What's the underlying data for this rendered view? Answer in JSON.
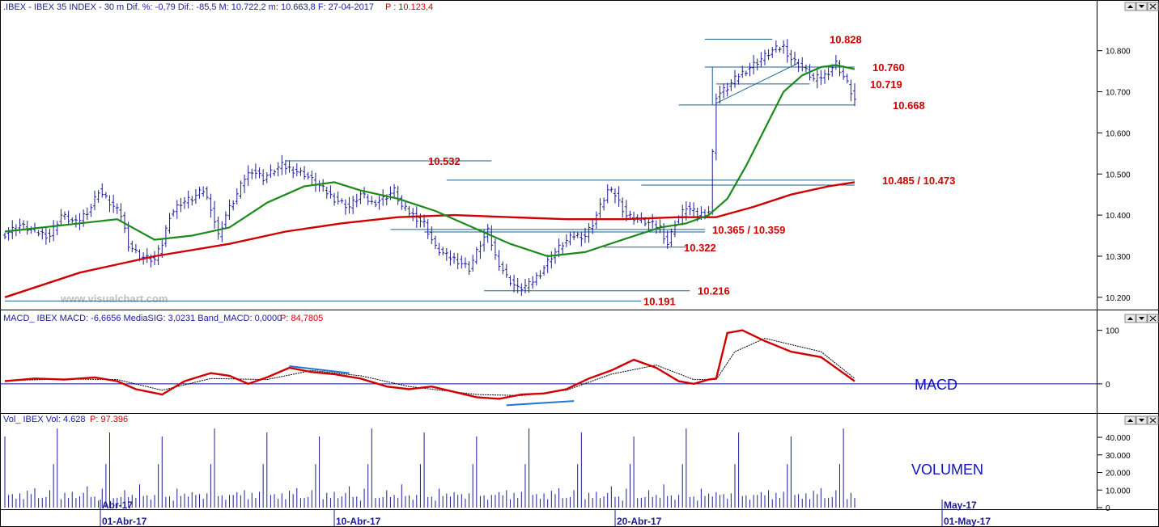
{
  "header": {
    "price_title": ".IBEX - IBEX 35 INDEX - 30 m Dif. %: -0,79 Dif.: -85,5 M: 10.722,2 m: 10.663,8 F: 27-04-2017",
    "price_p": "P : 10.123,4",
    "macd_title": "MACD_ IBEX MACD: -6,6656 MediaSIG: 3,0231 Band_MACD: 0,0000",
    "macd_p": "P: 84,7805",
    "vol_title": "Vol_ IBEX Vol: 4.628",
    "vol_p": "P: 97.396"
  },
  "watermark": "www.visualchart.com",
  "panel_labels": {
    "macd": "MACD",
    "volume": "VOLUMEN"
  },
  "colors": {
    "bars": "#1b1b99",
    "sma_fast": "#1a8a1a",
    "sma_slow": "#d00000",
    "levels": "#1a6090",
    "level_text": "#d00000",
    "macd": "#d00000",
    "signal": "#000000",
    "trend": "#1e78d0"
  },
  "chart_data": [
    {
      "type": "line",
      "name": "price",
      "y_ticks": [
        "10.800",
        "10.700",
        "10.600",
        "10.500",
        "10.400",
        "10.300",
        "10.200"
      ],
      "y_tick_values": [
        10800,
        10700,
        10600,
        10500,
        10400,
        10300,
        10200
      ],
      "ylim": [
        10180,
        10880
      ],
      "x_ticks": [
        "01-Abr-17",
        "10-Abr-17",
        "20-Abr-17",
        "01-May-17"
      ],
      "x_tick_top": [
        "Abr-17",
        "May-17"
      ],
      "levels": [
        {
          "value": 10828,
          "label": "10.828"
        },
        {
          "value": 10760,
          "label": "10.760"
        },
        {
          "value": 10719,
          "label": "10.719"
        },
        {
          "value": 10668,
          "label": "10.668"
        },
        {
          "value": 10532,
          "label": "10.532"
        },
        {
          "value": 10485,
          "label": "10.485 / 10.473"
        },
        {
          "value": 10473,
          "label": ""
        },
        {
          "value": 10365,
          "label": "10.365 / 10.359"
        },
        {
          "value": 10359,
          "label": ""
        },
        {
          "value": 10322,
          "label": "10.322"
        },
        {
          "value": 10216,
          "label": "10.216"
        },
        {
          "value": 10191,
          "label": "10.191"
        }
      ],
      "close_path": [
        [
          0,
          10355
        ],
        [
          4,
          10375
        ],
        [
          8,
          10360
        ],
        [
          12,
          10350
        ],
        [
          15,
          10400
        ],
        [
          19,
          10380
        ],
        [
          23,
          10420
        ],
        [
          25,
          10460
        ],
        [
          29,
          10420
        ],
        [
          31,
          10400
        ],
        [
          33,
          10330
        ],
        [
          36,
          10300
        ],
        [
          40,
          10290
        ],
        [
          42,
          10330
        ],
        [
          44,
          10400
        ],
        [
          47,
          10430
        ],
        [
          50,
          10440
        ],
        [
          53,
          10460
        ],
        [
          55,
          10420
        ],
        [
          57,
          10350
        ],
        [
          59,
          10400
        ],
        [
          62,
          10450
        ],
        [
          64,
          10490
        ],
        [
          66,
          10510
        ],
        [
          69,
          10490
        ],
        [
          72,
          10510
        ],
        [
          74,
          10520
        ],
        [
          77,
          10510
        ],
        [
          80,
          10500
        ],
        [
          84,
          10470
        ],
        [
          88,
          10440
        ],
        [
          92,
          10420
        ],
        [
          95,
          10450
        ],
        [
          98,
          10430
        ],
        [
          101,
          10440
        ],
        [
          104,
          10460
        ],
        [
          106,
          10420
        ],
        [
          109,
          10400
        ],
        [
          112,
          10380
        ],
        [
          115,
          10320
        ],
        [
          118,
          10300
        ],
        [
          121,
          10290
        ],
        [
          124,
          10270
        ],
        [
          127,
          10330
        ],
        [
          129,
          10360
        ],
        [
          131,
          10300
        ],
        [
          134,
          10250
        ],
        [
          137,
          10220
        ],
        [
          140,
          10230
        ],
        [
          143,
          10260
        ],
        [
          146,
          10300
        ],
        [
          149,
          10330
        ],
        [
          152,
          10350
        ],
        [
          155,
          10350
        ],
        [
          157,
          10380
        ],
        [
          159,
          10420
        ],
        [
          161,
          10460
        ],
        [
          163,
          10450
        ],
        [
          166,
          10400
        ],
        [
          169,
          10390
        ],
        [
          172,
          10380
        ],
        [
          175,
          10370
        ],
        [
          177,
          10330
        ],
        [
          179,
          10380
        ],
        [
          182,
          10420
        ],
        [
          185,
          10400
        ],
        [
          188,
          10410
        ],
        [
          190,
          10690
        ],
        [
          193,
          10710
        ],
        [
          196,
          10740
        ],
        [
          199,
          10760
        ],
        [
          202,
          10780
        ],
        [
          205,
          10800
        ],
        [
          208,
          10810
        ],
        [
          210,
          10780
        ],
        [
          213,
          10760
        ],
        [
          216,
          10730
        ],
        [
          219,
          10740
        ],
        [
          222,
          10770
        ],
        [
          225,
          10720
        ],
        [
          227,
          10680
        ]
      ],
      "sma_fast": [
        [
          0,
          10360
        ],
        [
          20,
          10380
        ],
        [
          30,
          10390
        ],
        [
          40,
          10340
        ],
        [
          50,
          10350
        ],
        [
          60,
          10370
        ],
        [
          70,
          10430
        ],
        [
          80,
          10470
        ],
        [
          88,
          10480
        ],
        [
          95,
          10460
        ],
        [
          105,
          10440
        ],
        [
          115,
          10410
        ],
        [
          125,
          10370
        ],
        [
          135,
          10330
        ],
        [
          145,
          10300
        ],
        [
          155,
          10310
        ],
        [
          165,
          10340
        ],
        [
          175,
          10370
        ],
        [
          182,
          10380
        ],
        [
          188,
          10400
        ],
        [
          193,
          10440
        ],
        [
          198,
          10520
        ],
        [
          203,
          10610
        ],
        [
          208,
          10700
        ],
        [
          213,
          10740
        ],
        [
          218,
          10760
        ],
        [
          222,
          10765
        ],
        [
          227,
          10755
        ]
      ],
      "sma_slow": [
        [
          0,
          10200
        ],
        [
          20,
          10260
        ],
        [
          40,
          10300
        ],
        [
          60,
          10330
        ],
        [
          75,
          10360
        ],
        [
          90,
          10380
        ],
        [
          105,
          10395
        ],
        [
          120,
          10400
        ],
        [
          135,
          10395
        ],
        [
          150,
          10390
        ],
        [
          165,
          10390
        ],
        [
          180,
          10395
        ],
        [
          190,
          10395
        ],
        [
          200,
          10420
        ],
        [
          210,
          10450
        ],
        [
          220,
          10470
        ],
        [
          227,
          10480
        ]
      ]
    },
    {
      "type": "line",
      "name": "MACD",
      "y_ticks": [
        "100",
        "0"
      ],
      "y_tick_values": [
        100,
        0
      ],
      "ylim": [
        -50,
        110
      ],
      "macd": [
        [
          0,
          5
        ],
        [
          8,
          10
        ],
        [
          16,
          8
        ],
        [
          24,
          12
        ],
        [
          30,
          5
        ],
        [
          35,
          -10
        ],
        [
          42,
          -20
        ],
        [
          48,
          5
        ],
        [
          55,
          20
        ],
        [
          60,
          15
        ],
        [
          65,
          0
        ],
        [
          70,
          12
        ],
        [
          76,
          30
        ],
        [
          82,
          22
        ],
        [
          88,
          18
        ],
        [
          95,
          10
        ],
        [
          102,
          -5
        ],
        [
          108,
          -10
        ],
        [
          114,
          -5
        ],
        [
          120,
          -15
        ],
        [
          126,
          -25
        ],
        [
          132,
          -28
        ],
        [
          138,
          -20
        ],
        [
          144,
          -18
        ],
        [
          150,
          -10
        ],
        [
          156,
          10
        ],
        [
          162,
          25
        ],
        [
          168,
          45
        ],
        [
          174,
          30
        ],
        [
          180,
          5
        ],
        [
          184,
          0
        ],
        [
          188,
          8
        ],
        [
          190,
          10
        ],
        [
          193,
          95
        ],
        [
          197,
          100
        ],
        [
          203,
          80
        ],
        [
          210,
          60
        ],
        [
          218,
          50
        ],
        [
          224,
          20
        ],
        [
          227,
          5
        ]
      ],
      "signal": [
        [
          0,
          6
        ],
        [
          16,
          9
        ],
        [
          30,
          8
        ],
        [
          42,
          -12
        ],
        [
          55,
          10
        ],
        [
          70,
          8
        ],
        [
          82,
          25
        ],
        [
          95,
          15
        ],
        [
          108,
          -5
        ],
        [
          126,
          -20
        ],
        [
          138,
          -22
        ],
        [
          150,
          -12
        ],
        [
          162,
          18
        ],
        [
          174,
          35
        ],
        [
          184,
          8
        ],
        [
          190,
          8
        ],
        [
          195,
          60
        ],
        [
          203,
          85
        ],
        [
          218,
          60
        ],
        [
          227,
          10
        ]
      ],
      "trendlines": [
        {
          "from": [
            76,
            33
          ],
          "to": [
            92,
            20
          ]
        },
        {
          "from": [
            134,
            -40
          ],
          "to": [
            152,
            -32
          ]
        }
      ]
    },
    {
      "type": "bar",
      "name": "Volume",
      "y_ticks": [
        "40.000",
        "30.000",
        "20.000",
        "10.000",
        "0"
      ],
      "y_tick_values": [
        40000,
        30000,
        20000,
        10000,
        0
      ],
      "ylim": [
        0,
        46000
      ],
      "spikes_every": 14,
      "spike_value": 45000,
      "base_values": [
        8000,
        6000,
        7000,
        5000,
        9000,
        6000,
        8000,
        7000,
        11000,
        6000,
        7000,
        5000,
        9000,
        12000
      ]
    }
  ]
}
